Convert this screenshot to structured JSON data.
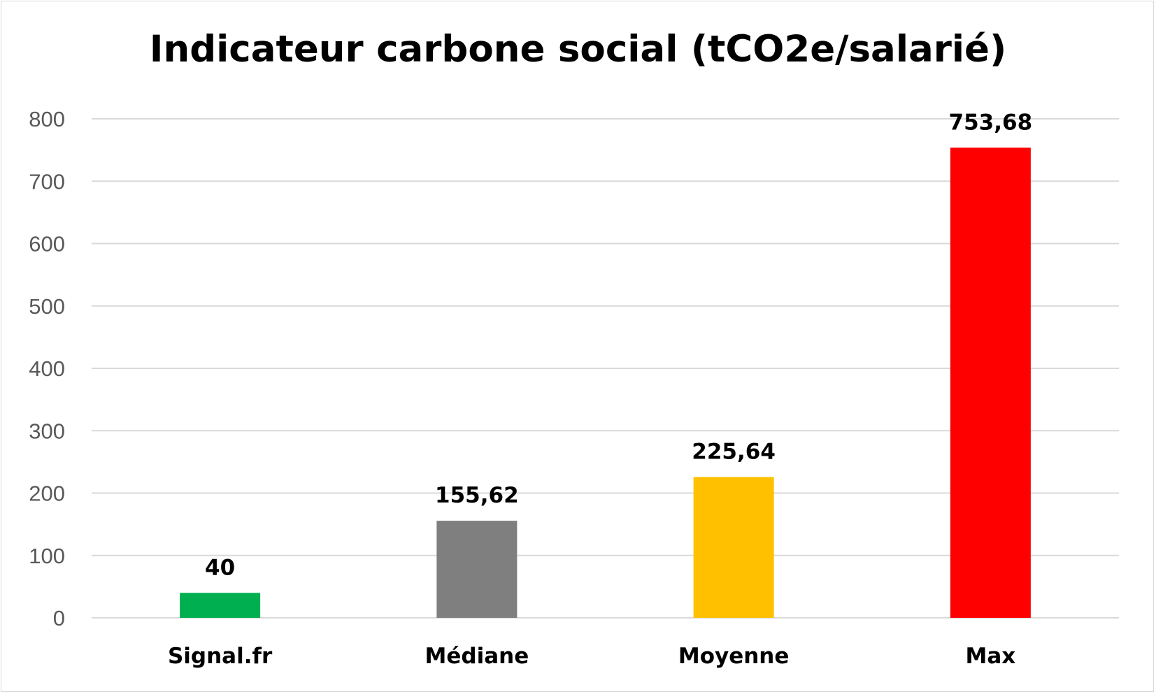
{
  "chart_data": {
    "type": "bar",
    "title": "Indicateur carbone social (tCO2e/salarié)",
    "categories": [
      "Signal.fr",
      "Médiane",
      "Moyenne",
      "Max"
    ],
    "values": [
      40,
      155.62,
      225.64,
      753.68
    ],
    "data_labels": [
      "40",
      "155,62",
      "225,64",
      "753,68"
    ],
    "bar_colors": [
      "#00b050",
      "#7f7f7f",
      "#ffc000",
      "#ff0000"
    ],
    "ylim": [
      0,
      800
    ],
    "yticks": [
      0,
      100,
      200,
      300,
      400,
      500,
      600,
      700,
      800
    ],
    "xlabel": "",
    "ylabel": "",
    "grid": true,
    "legend": "none",
    "gridline_color": "#d9d9d9",
    "tick_color": "#595959"
  }
}
